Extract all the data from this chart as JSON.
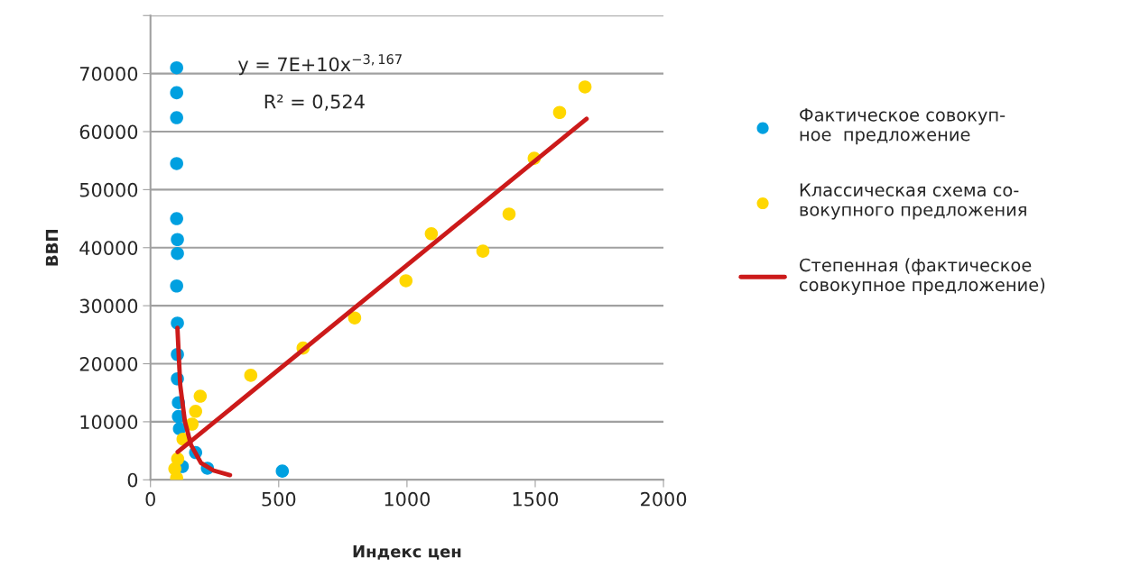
{
  "chart_data": {
    "type": "scatter",
    "xlabel": "Индекс цен",
    "ylabel": "ВВП",
    "annotations": [
      "y = 7E+10x$^{−3,167}$",
      "R² = 0,524"
    ],
    "series": [
      {
        "name": "Фактическое совокуп-\nное  предложение",
        "marker": "circle",
        "color": "#00a0e0",
        "x": [
          102,
          102,
          102,
          102,
          102,
          105,
          105,
          102,
          105,
          105,
          105,
          109,
          109,
          113,
          116,
          124,
          176,
          222,
          514
        ],
        "values": [
          71000,
          66700,
          62400,
          54500,
          45000,
          41400,
          39000,
          33400,
          27000,
          21600,
          17400,
          13300,
          10900,
          8800,
          null,
          2300,
          4700,
          2000,
          1500
        ]
      },
      {
        "name": "Классическая схема со-\nвокупного предложения",
        "marker": "circle",
        "color": "#ffd700",
        "x": [
          102,
          95,
          106,
          127,
          162,
          176,
          194,
          391,
          595,
          796,
          996,
          1095,
          1296,
          1398,
          1496,
          1595,
          1694
        ],
        "values": [
          300,
          1900,
          3600,
          7000,
          9600,
          11800,
          14400,
          18000,
          22700,
          27900,
          34300,
          42400,
          39400,
          45800,
          55400,
          63300,
          67700
        ]
      },
      {
        "name": "Степенная (фактическое\nсовокупное предложение)",
        "type": "line",
        "marker": "none",
        "color": "#cc1a1a",
        "x": [
          105,
          116,
          134,
          158,
          197,
          246,
          310
        ],
        "values": [
          26200,
          16300,
          10100,
          6000,
          2900,
          1600,
          800
        ]
      },
      {
        "type": "line",
        "marker": "none",
        "color": "#cc1a1a",
        "x": [
          106,
          1700
        ],
        "values": [
          4800,
          62200
        ]
      }
    ],
    "xlim": [
      0,
      2000
    ],
    "xticks": [
      0,
      500,
      1000,
      1500,
      2000
    ],
    "ylim": [
      0,
      80000
    ],
    "yticks": [
      0,
      10000,
      20000,
      30000,
      40000,
      50000,
      60000,
      70000,
      {
        "value": 80000,
        "label": null
      }
    ],
    "grid": "y",
    "legend": "right"
  }
}
